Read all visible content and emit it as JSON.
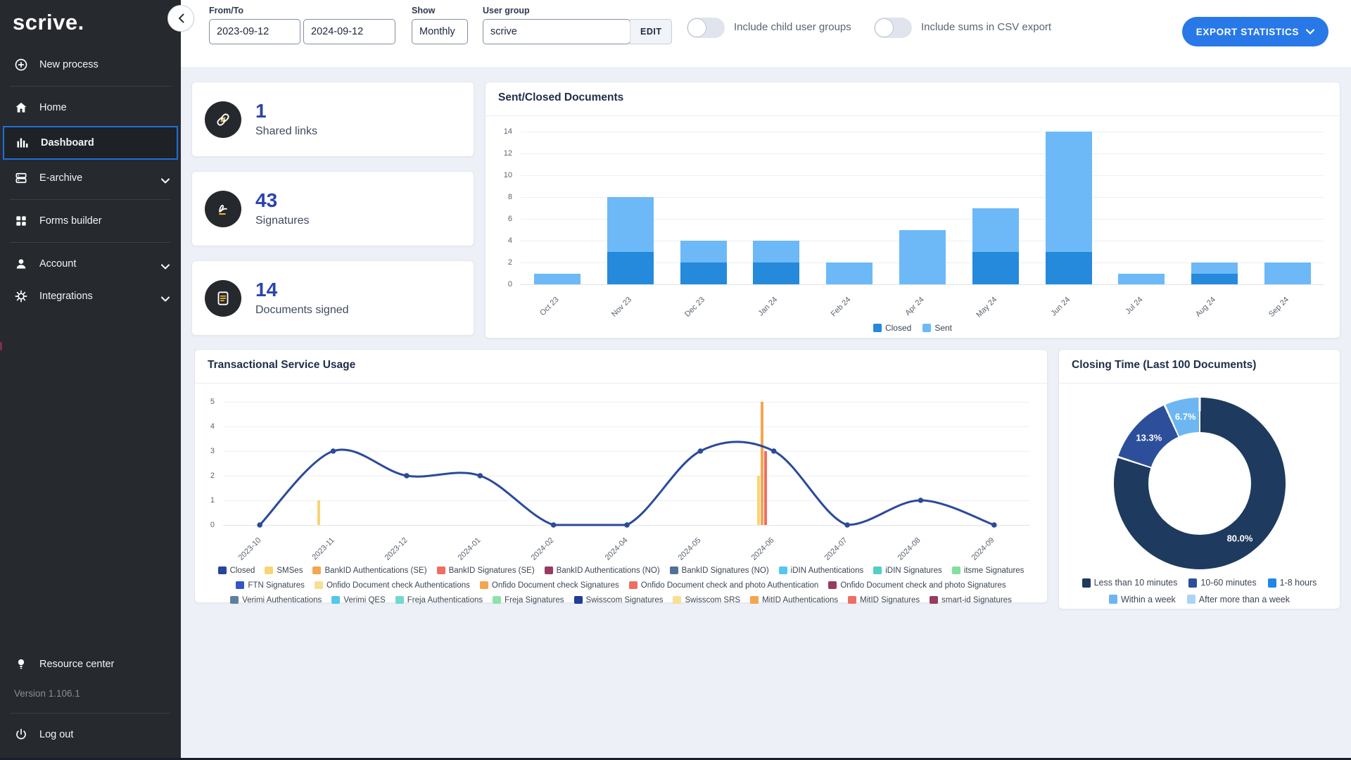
{
  "colors": {
    "sidebar_bg": "#26292e",
    "active_item_border": "#1e6fd9",
    "accent_yellow": "#f0b429",
    "export_button_blue": "#2878e8",
    "stat_value_blue": "#2b43ad"
  },
  "sidebar": {
    "logo": "scrive.",
    "items": [
      {
        "label": "New process",
        "icon": "plus-circle-icon"
      },
      {
        "label": "Home",
        "icon": "home-icon"
      },
      {
        "label": "Dashboard",
        "icon": "bar-chart-icon",
        "active": true
      },
      {
        "label": "E-archive",
        "icon": "archive-icon",
        "expandable": true
      },
      {
        "label": "Forms builder",
        "icon": "grid-icon"
      },
      {
        "label": "Account",
        "icon": "user-icon",
        "expandable": true
      },
      {
        "label": "Integrations",
        "icon": "gear-icon",
        "expandable": true
      }
    ],
    "resource_center": "Resource center",
    "version": "Version 1.106.1",
    "logout": "Log out"
  },
  "topbar": {
    "from_to_label": "From/To",
    "date_from": "2023-09-12",
    "date_to": "2024-09-12",
    "show_label": "Show",
    "show_value": "Monthly",
    "user_group_label": "User group",
    "user_group_value": "scrive",
    "edit_button": "EDIT",
    "toggle_child_groups_label": "Include child user groups",
    "toggle_child_groups_on": false,
    "toggle_csv_sums_label": "Include sums in CSV export",
    "toggle_csv_sums_on": false,
    "export_button": "EXPORT STATISTICS"
  },
  "stat_cards": [
    {
      "value": "1",
      "label": "Shared links",
      "icon": "link-icon"
    },
    {
      "value": "43",
      "label": "Signatures",
      "icon": "signature-icon"
    },
    {
      "value": "14",
      "label": "Documents signed",
      "icon": "document-icon"
    }
  ],
  "chart_data": [
    {
      "id": "sent_closed",
      "type": "bar",
      "title": "Sent/Closed Documents",
      "stacked": true,
      "categories": [
        "Oct 23",
        "Nov 23",
        "Dec 23",
        "Jan 24",
        "Feb 24",
        "Apr 24",
        "May 24",
        "Jun 24",
        "Jul 24",
        "Aug 24",
        "Sep 24"
      ],
      "series": [
        {
          "name": "Closed",
          "color": "#2589dc",
          "values": [
            0,
            3,
            2,
            2,
            0,
            0,
            3,
            3,
            0,
            1,
            0
          ]
        },
        {
          "name": "Sent",
          "color": "#6db9f7",
          "values": [
            1,
            5,
            2,
            2,
            2,
            5,
            4,
            11,
            1,
            1,
            2
          ]
        }
      ],
      "ylim": [
        0,
        14
      ],
      "ytick_step": 2,
      "grid": true,
      "legend_position": "bottom"
    },
    {
      "id": "transactional",
      "type": "line",
      "title": "Transactional Service Usage",
      "categories": [
        "2023-10",
        "2023-11",
        "2023-12",
        "2024-01",
        "2024-02",
        "2024-04",
        "2024-05",
        "2024-06",
        "2024-07",
        "2024-08",
        "2024-09"
      ],
      "line_series": [
        {
          "name": "Closed",
          "color": "#2b4a9b",
          "values": [
            0,
            3,
            2,
            2,
            0,
            0,
            3,
            3,
            0,
            1,
            0
          ]
        }
      ],
      "bar_series": [
        {
          "name": "SMSes",
          "color": "#f7d575",
          "points": {
            "2023-11": 1,
            "2024-06": 2
          }
        },
        {
          "name": "BankID Authentications (SE)",
          "color": "#f5a54d",
          "points": {
            "2024-06": 5
          }
        },
        {
          "name": "BankID Signatures (SE)",
          "color": "#ee6e63",
          "points": {
            "2024-06": 3
          }
        }
      ],
      "ylim": [
        0,
        5
      ],
      "ytick_step": 1,
      "grid": true,
      "legend_rows": [
        [
          {
            "label": "Closed",
            "color": "#27449b"
          },
          {
            "label": "SMSes",
            "color": "#f7d575"
          },
          {
            "label": "BankID Authentications (SE)",
            "color": "#f5a54d"
          },
          {
            "label": "BankID Signatures (SE)",
            "color": "#ee6e63"
          },
          {
            "label": "BankID Authentications (NO)",
            "color": "#993a62"
          },
          {
            "label": "BankID Signatures (NO)",
            "color": "#4f7296"
          },
          {
            "label": "iDIN Authentications",
            "color": "#53c8ec"
          },
          {
            "label": "iDIN Signatures",
            "color": "#52cfc5"
          },
          {
            "label": "itsme Signatures",
            "color": "#82dfa0"
          }
        ],
        [
          {
            "label": "FTN Signatures",
            "color": "#3355c8"
          },
          {
            "label": "Onfido Document check Authentications",
            "color": "#f8df92"
          },
          {
            "label": "Onfido Document check Signatures",
            "color": "#f5a54d"
          },
          {
            "label": "Onfido Document check and photo Authentication",
            "color": "#ee6e63"
          },
          {
            "label": "Onfido Document check and photo Signatures",
            "color": "#993a62"
          }
        ],
        [
          {
            "label": "Verimi Authentications",
            "color": "#5f7f9e"
          },
          {
            "label": "Verimi QES",
            "color": "#53c8ec"
          },
          {
            "label": "Freja Authentications",
            "color": "#72d8ce"
          },
          {
            "label": "Freja Signatures",
            "color": "#8fe2a8"
          },
          {
            "label": "Swisscom Signatures",
            "color": "#1f3c96"
          },
          {
            "label": "Swisscom SRS",
            "color": "#f8df92"
          },
          {
            "label": "MitID Authentications",
            "color": "#f5a54d"
          },
          {
            "label": "MitID Signatures",
            "color": "#ee6e63"
          },
          {
            "label": "smart-id Signatures",
            "color": "#993a62"
          }
        ]
      ]
    },
    {
      "id": "closing_time",
      "type": "pie",
      "title": "Closing Time (Last 100 Documents)",
      "donut": true,
      "slices": [
        {
          "label": "Less than 10 minutes",
          "value": 80.0,
          "display": "80.0%",
          "color": "#1e3a5f"
        },
        {
          "label": "10-60 minutes",
          "value": 13.3,
          "display": "13.3%",
          "color": "#2d4f9b"
        },
        {
          "label": "Within a week",
          "value": 6.7,
          "display": "6.7%",
          "color": "#6db6f2"
        }
      ],
      "legend_rows": [
        [
          {
            "label": "Less than 10 minutes",
            "color": "#1e3a5f"
          },
          {
            "label": "10-60 minutes",
            "color": "#2d4f9b"
          },
          {
            "label": "1-8 hours",
            "color": "#1e88e5"
          }
        ],
        [
          {
            "label": "Within a week",
            "color": "#6db6f2"
          },
          {
            "label": "After more than a week",
            "color": "#a9d5f5"
          }
        ]
      ]
    }
  ]
}
